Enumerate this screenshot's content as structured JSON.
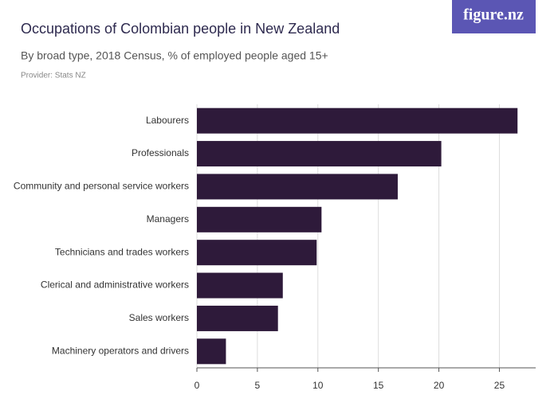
{
  "logo": "figure.nz",
  "chart_data": {
    "type": "bar",
    "orientation": "horizontal",
    "title": "Occupations of Colombian people in New Zealand",
    "subtitle": "By broad type, 2018 Census, % of employed people aged 15+",
    "source": "Provider: Stats NZ",
    "categories": [
      "Labourers",
      "Professionals",
      "Community and personal service workers",
      "Managers",
      "Technicians and trades workers",
      "Clerical and administrative workers",
      "Sales workers",
      "Machinery operators and drivers"
    ],
    "values": [
      26.5,
      20.2,
      16.6,
      10.3,
      9.9,
      7.1,
      6.7,
      2.4
    ],
    "color": "#2e1a3a",
    "xlim": [
      0,
      28
    ],
    "xticks": [
      0,
      5,
      10,
      15,
      20,
      25
    ],
    "grid": true
  }
}
